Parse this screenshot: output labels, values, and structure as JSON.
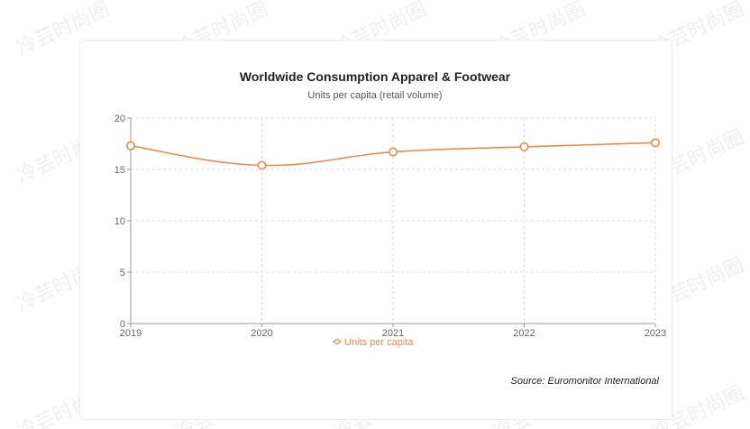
{
  "chart_data": {
    "type": "line",
    "title": "Worldwide Consumption Apparel & Footwear",
    "subtitle": "Units per capita (retail volume)",
    "categories": [
      "2019",
      "2020",
      "2021",
      "2022",
      "2023"
    ],
    "series": [
      {
        "name": "Units per capita",
        "values": [
          17.3,
          15.4,
          16.7,
          17.2,
          17.6
        ],
        "color": "#f0874a"
      }
    ],
    "yticks": [
      "0",
      "5",
      "10",
      "15",
      "20"
    ],
    "ylim": [
      0,
      20
    ],
    "grid": true,
    "legend": "bottom"
  },
  "source": "Source: Euromonitor International",
  "watermark_text": "冷芸时尚圈"
}
